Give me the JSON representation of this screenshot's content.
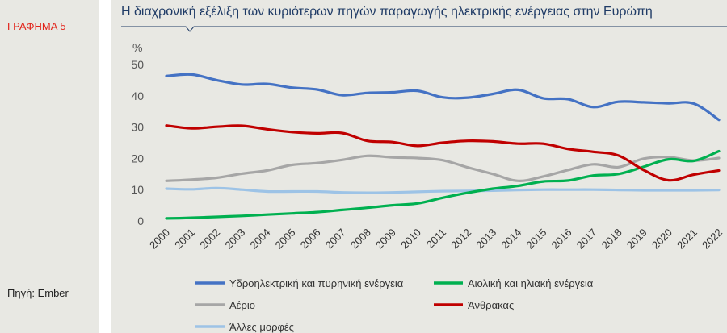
{
  "sidebar": {
    "figure_label": "ΓΡΑΦΗΜΑ 5",
    "source_label": "Πηγή: Ember"
  },
  "colors": {
    "title": "#1f3b66",
    "figure_label": "#e2231a",
    "background": "#e8e8e3"
  },
  "chart_data": {
    "type": "line",
    "title": "Η διαχρονική εξέλιξη των κυριότερων πηγών παραγωγής ηλεκτρικής ενέργειας στην Ευρώπη",
    "ylabel": "%",
    "xlabel": "",
    "ylim": [
      0,
      50
    ],
    "yticks": [
      0,
      10,
      20,
      30,
      40,
      50
    ],
    "grid": false,
    "legend_position": "bottom",
    "x": [
      "2000",
      "2001",
      "2002",
      "2003",
      "2004",
      "2005",
      "2006",
      "2007",
      "2008",
      "2009",
      "2010",
      "2011",
      "2012",
      "2013",
      "2014",
      "2015",
      "2016",
      "2017",
      "2018",
      "2019",
      "2020",
      "2021",
      "2022"
    ],
    "series": [
      {
        "name": "Υδροηλεκτρική και πυρηνική ενέργεια",
        "color": "#4472c4",
        "values": [
          46.3,
          46.8,
          45.0,
          43.6,
          43.8,
          42.6,
          42.0,
          40.2,
          40.9,
          41.1,
          41.6,
          39.5,
          39.4,
          40.6,
          41.9,
          39.2,
          38.9,
          36.4,
          38.1,
          37.9,
          37.6,
          37.5,
          32.3
        ]
      },
      {
        "name": "Αιολική και ηλιακή ενέργεια",
        "color": "#00b050",
        "values": [
          0.8,
          1.0,
          1.3,
          1.6,
          2.0,
          2.4,
          2.8,
          3.5,
          4.2,
          5.0,
          5.6,
          7.4,
          9.0,
          10.3,
          11.2,
          12.6,
          12.9,
          14.5,
          15.0,
          17.3,
          19.7,
          19.2,
          22.3
        ]
      },
      {
        "name": "Αέριο",
        "color": "#a6a6a6",
        "values": [
          12.8,
          13.2,
          13.8,
          15.1,
          16.1,
          17.9,
          18.5,
          19.5,
          20.8,
          20.3,
          20.1,
          19.4,
          17.1,
          15.0,
          12.8,
          14.2,
          16.3,
          18.1,
          17.2,
          19.9,
          20.4,
          19.3,
          20.1
        ]
      },
      {
        "name": "Άνθρακας",
        "color": "#c00000",
        "values": [
          30.5,
          29.6,
          30.1,
          30.4,
          29.3,
          28.4,
          28.0,
          28.1,
          25.6,
          25.2,
          24.0,
          25.0,
          25.6,
          25.4,
          24.7,
          24.7,
          23.0,
          22.1,
          20.9,
          16.3,
          13.0,
          14.8,
          16.1
        ]
      },
      {
        "name": "Άλλες μορφές",
        "color": "#9dc3e6",
        "values": [
          10.3,
          10.1,
          10.5,
          10.0,
          9.4,
          9.4,
          9.4,
          9.1,
          9.0,
          9.1,
          9.3,
          9.5,
          9.6,
          9.7,
          9.9,
          10.0,
          10.0,
          10.0,
          9.9,
          9.8,
          9.8,
          9.8,
          9.9
        ]
      }
    ]
  }
}
